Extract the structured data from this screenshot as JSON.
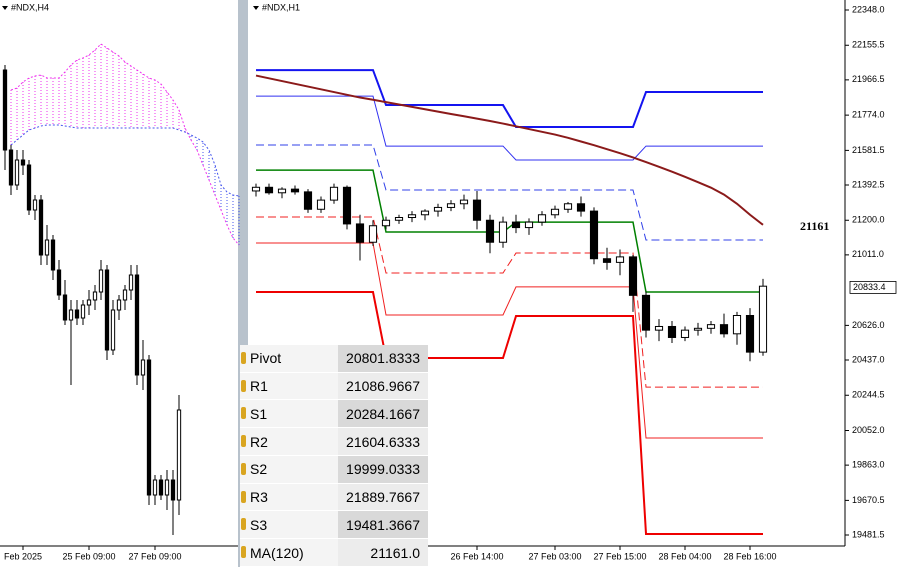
{
  "chart_data": [
    {
      "type": "candlestick",
      "title": "#NDX,H4",
      "ylim": [
        19700,
        22400
      ],
      "categories": [
        null,
        null,
        null,
        "Feb 2025",
        null,
        null,
        null,
        null,
        null,
        null,
        null,
        null,
        null,
        null,
        "25 Feb 09:00",
        null,
        null,
        null,
        null,
        null,
        null,
        null,
        null,
        null,
        null,
        "27 Feb 09:00",
        null,
        null,
        null,
        null,
        null,
        null,
        null,
        null,
        null,
        null,
        null,
        null,
        null,
        null
      ],
      "open": [
        22050,
        21650,
        21475,
        21600,
        21575,
        21350,
        21400,
        21125,
        21200,
        21050,
        20925,
        20800,
        20850,
        20810,
        20875,
        20900,
        20940,
        21050,
        20650,
        20850,
        20900,
        20950,
        21025,
        20525,
        20600,
        19925,
        20000,
        19925,
        20000,
        19900,
        null,
        null,
        null,
        null,
        null,
        null,
        null,
        null,
        null,
        null
      ],
      "high": [
        22075,
        21675,
        21650,
        21650,
        21600,
        21425,
        21425,
        21275,
        21225,
        21100,
        21000,
        20900,
        20900,
        20900,
        20950,
        20975,
        21100,
        21075,
        20900,
        20925,
        20975,
        21075,
        21075,
        20700,
        20625,
        20025,
        20025,
        20050,
        20050,
        20425,
        null,
        null,
        null,
        null,
        null,
        null,
        null,
        null,
        null,
        null
      ],
      "low": [
        21550,
        21425,
        21450,
        21525,
        21325,
        21300,
        21075,
        21075,
        21000,
        20900,
        20775,
        20475,
        20775,
        20775,
        20825,
        20850,
        20900,
        20600,
        20625,
        20800,
        20850,
        20900,
        20475,
        20450,
        19875,
        19875,
        19900,
        19850,
        19725,
        19825,
        null,
        null,
        null,
        null,
        null,
        null,
        null,
        null,
        null,
        null
      ],
      "close": [
        21650,
        21475,
        21600,
        21575,
        21350,
        21400,
        21125,
        21200,
        21050,
        20925,
        20800,
        20850,
        20810,
        20875,
        20900,
        20940,
        21050,
        20650,
        20850,
        20900,
        20950,
        21025,
        20525,
        20600,
        19925,
        20000,
        19925,
        20000,
        19900,
        20350,
        null,
        null,
        null,
        null,
        null,
        null,
        null,
        null,
        null,
        null
      ],
      "up_color": "#ffffff",
      "down_color": "#000000",
      "cloud": {
        "up_color": "#ee33ee",
        "down_color": "#4455ee",
        "span_a": [
          null,
          21950,
          21960,
          21990,
          22010,
          22020,
          22025,
          22010,
          22010,
          22010,
          22040,
          22075,
          22100,
          22110,
          22125,
          22150,
          22180,
          22160,
          22140,
          22120,
          22090,
          22070,
          22050,
          22030,
          22010,
          22000,
          21980,
          21940,
          21900,
          21850,
          21760,
          21700,
          21650,
          21575,
          21500,
          21425,
          21350,
          21275,
          21210,
          21175
        ],
        "span_b": [
          null,
          21675,
          21700,
          21725,
          21750,
          21760,
          21770,
          21775,
          21775,
          21775,
          21770,
          21765,
          21760,
          21760,
          21760,
          21760,
          21760,
          21760,
          21760,
          21760,
          21760,
          21760,
          21760,
          21760,
          21760,
          21760,
          21760,
          21760,
          21760,
          21750,
          21740,
          21725,
          21710,
          21690,
          21650,
          21575,
          21475,
          21440,
          21425,
          21420
        ]
      }
    },
    {
      "type": "candlestick",
      "title": "#NDX,H1",
      "ylim": [
        19481.5,
        22348
      ],
      "yticks": [
        {
          "value": 22348,
          "label": "22348.0"
        },
        22155.5,
        21966.5,
        {
          "value": 21774,
          "label": "21774.0"
        },
        21581.5,
        21392.5,
        {
          "value": 21200,
          "label": "21200.0"
        },
        {
          "value": 21011,
          "label": "21011.0"
        },
        {
          "value": 20626,
          "label": "20626.0"
        },
        {
          "value": 20437,
          "label": "20437.0"
        },
        20244.5,
        {
          "value": 20052,
          "label": "20052.0"
        },
        {
          "value": 19863,
          "label": "19863.0"
        },
        19670.5,
        19481.5
      ],
      "categories": [
        null,
        null,
        null,
        null,
        null,
        null,
        null,
        null,
        null,
        null,
        null,
        null,
        null,
        null,
        null,
        null,
        null,
        "26 Feb 14:00",
        null,
        null,
        null,
        null,
        null,
        "27 Feb 03:00",
        null,
        null,
        null,
        null,
        "27 Feb 15:00",
        null,
        null,
        null,
        null,
        "28 Feb 04:00",
        null,
        null,
        null,
        null,
        "28 Feb 16:00",
        null
      ],
      "open": [
        21360,
        21380,
        21350,
        21370,
        21355,
        21260,
        21310,
        21380,
        21180,
        21080,
        21170,
        21200,
        21215,
        21230,
        21250,
        21270,
        21290,
        21310,
        21200,
        21080,
        21190,
        21160,
        21190,
        21230,
        21260,
        21290,
        21250,
        20990,
        20970,
        21000,
        20790,
        20600,
        20620,
        20560,
        20600,
        20610,
        20630,
        20580,
        20680,
        20480
      ],
      "high": [
        21400,
        21400,
        21380,
        21390,
        21370,
        21330,
        21400,
        21390,
        21230,
        21200,
        21220,
        21230,
        21250,
        21260,
        21290,
        21310,
        21340,
        21360,
        21230,
        21220,
        21230,
        21210,
        21250,
        21280,
        21300,
        21330,
        21270,
        21050,
        21040,
        21010,
        20810,
        20660,
        20650,
        20620,
        20640,
        20650,
        20690,
        20700,
        20720,
        20880
      ],
      "low": [
        21330,
        21340,
        21320,
        21340,
        21240,
        21240,
        21290,
        21150,
        20980,
        21060,
        21150,
        21180,
        21190,
        21200,
        21220,
        21250,
        21260,
        21150,
        21020,
        21050,
        21130,
        21120,
        21170,
        21210,
        21240,
        21220,
        20960,
        20930,
        20900,
        20700,
        20560,
        20540,
        20530,
        20540,
        20570,
        20580,
        20560,
        20520,
        20430,
        20460
      ],
      "close": [
        21380,
        21350,
        21370,
        21355,
        21260,
        21310,
        21380,
        21180,
        21080,
        21170,
        21200,
        21215,
        21230,
        21250,
        21270,
        21290,
        21310,
        21200,
        21080,
        21190,
        21160,
        21190,
        21230,
        21260,
        21290,
        21250,
        20990,
        20970,
        21000,
        20790,
        20600,
        20620,
        20560,
        20600,
        20610,
        20630,
        20580,
        20680,
        20480,
        20840
      ],
      "up_color": "#ffffff",
      "down_color": "#000000",
      "series": [
        {
          "color": "#1414f0",
          "width": 2,
          "dashed": false,
          "values": [
            22020,
            22020,
            22020,
            22020,
            22020,
            22020,
            22020,
            22020,
            22020,
            22020,
            21829,
            21829,
            21829,
            21829,
            21829,
            21829,
            21829,
            21829,
            21829,
            21829,
            21709,
            21709,
            21709,
            21709,
            21709,
            21709,
            21709,
            21709,
            21709,
            21709,
            21900,
            21900,
            21900,
            21900,
            21900,
            21900,
            21900,
            21900,
            21900,
            21900
          ]
        },
        {
          "color": "#3030f0",
          "width": 1,
          "dashed": false,
          "values": [
            21878,
            21878,
            21878,
            21878,
            21878,
            21878,
            21878,
            21878,
            21878,
            21878,
            21605,
            21605,
            21605,
            21605,
            21605,
            21605,
            21605,
            21605,
            21605,
            21605,
            21529,
            21529,
            21529,
            21529,
            21529,
            21529,
            21529,
            21529,
            21529,
            21529,
            21605,
            21605,
            21605,
            21605,
            21605,
            21605,
            21605,
            21605,
            21605,
            21605
          ]
        },
        {
          "color": "#3040e8",
          "width": 1,
          "dashed": true,
          "values": [
            21611,
            21611,
            21611,
            21611,
            21611,
            21611,
            21611,
            21611,
            21611,
            21611,
            21365,
            21365,
            21365,
            21365,
            21365,
            21365,
            21365,
            21365,
            21365,
            21365,
            21365,
            21365,
            21365,
            21365,
            21365,
            21365,
            21365,
            21365,
            21365,
            21365,
            21092,
            21092,
            21092,
            21092,
            21092,
            21092,
            21092,
            21092,
            21092,
            21092
          ]
        },
        {
          "color": "#008000",
          "width": 1.5,
          "dashed": false,
          "values": [
            21474,
            21474,
            21474,
            21474,
            21474,
            21474,
            21474,
            21474,
            21474,
            21474,
            21136,
            21136,
            21136,
            21136,
            21136,
            21136,
            21136,
            21136,
            21136,
            21136,
            21190,
            21190,
            21190,
            21190,
            21190,
            21190,
            21190,
            21190,
            21190,
            21190,
            20808,
            20808,
            20808,
            20808,
            20808,
            20808,
            20808,
            20808,
            20808,
            20808
          ]
        },
        {
          "color": "#f02020",
          "width": 1,
          "dashed": true,
          "values": [
            21218,
            21218,
            21218,
            21218,
            21218,
            21218,
            21218,
            21218,
            21218,
            21218,
            20912,
            20912,
            20912,
            20912,
            20912,
            20912,
            20912,
            20912,
            20912,
            20912,
            21021,
            21021,
            21021,
            21021,
            21021,
            21021,
            21021,
            21021,
            21021,
            21021,
            20289,
            20289,
            20289,
            20289,
            20289,
            20289,
            20289,
            20289,
            20289,
            20289
          ]
        },
        {
          "color": "#f02020",
          "width": 1,
          "dashed": false,
          "values": [
            21076,
            21076,
            21076,
            21076,
            21076,
            21076,
            21076,
            21076,
            21076,
            21076,
            20683,
            20683,
            20683,
            20683,
            20683,
            20683,
            20683,
            20683,
            20683,
            20683,
            20836,
            20836,
            20836,
            20836,
            20836,
            20836,
            20836,
            20836,
            20836,
            20836,
            20011,
            20011,
            20011,
            20011,
            20011,
            20011,
            20011,
            20011,
            20011,
            20011
          ]
        },
        {
          "color": "#ee0000",
          "width": 2,
          "dashed": false,
          "values": [
            20808,
            20808,
            20808,
            20808,
            20808,
            20808,
            20808,
            20808,
            20808,
            20808,
            20448,
            20448,
            20448,
            20448,
            20448,
            20448,
            20448,
            20448,
            20448,
            20448,
            20677,
            20677,
            20677,
            20677,
            20677,
            20677,
            20677,
            20677,
            20677,
            20677,
            19487,
            19487,
            19487,
            19487,
            19487,
            19487,
            19487,
            19487,
            19487,
            19487
          ]
        },
        {
          "color": "#8b1a1a",
          "width": 2,
          "dashed": false,
          "values": [
            21990,
            21975,
            21960,
            21945,
            21930,
            21915,
            21900,
            21885,
            21870,
            21858,
            21845,
            21832,
            21819,
            21806,
            21793,
            21780,
            21768,
            21755,
            21742,
            21728,
            21713,
            21698,
            21683,
            21668,
            21650,
            21630,
            21610,
            21588,
            21566,
            21543,
            21518,
            21492,
            21465,
            21437,
            21408,
            21378,
            21340,
            21290,
            21230,
            21175
          ]
        }
      ],
      "ma_label": 21161,
      "last_price": 20833.4
    }
  ],
  "table": {
    "rows": [
      [
        "Pivot",
        "20801.8333"
      ],
      [
        "R1",
        "21086.9667"
      ],
      [
        "S1",
        "20284.1667"
      ],
      [
        "R2",
        "21604.6333"
      ],
      [
        "S2",
        "19999.0333"
      ],
      [
        "R3",
        "21889.7667"
      ],
      [
        "S3",
        "19481.3667"
      ],
      [
        "MA(120)",
        "21161.0"
      ]
    ]
  }
}
